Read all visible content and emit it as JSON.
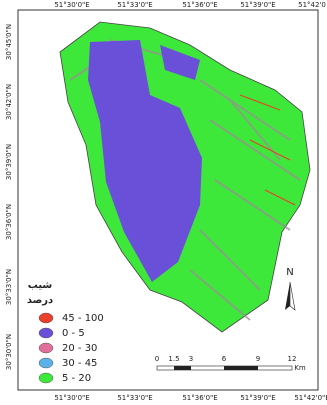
{
  "map": {
    "top_labels": [
      "51°30'0\"E",
      "51°33'0\"E",
      "51°36'0\"E",
      "51°39'0\"E",
      "51°42'0"
    ],
    "bottom_labels": [
      "51°30'0\"E",
      "51°33'0\"E",
      "51°36'0\"E",
      "51°39'0\"E",
      "51°42'0\"E"
    ],
    "left_labels": [
      "30°45'0\"N",
      "30°42'0\"N",
      "30°39'0\"N",
      "30°36'0\"N",
      "30°33'0\"N",
      "30°30'0\"N"
    ],
    "legend": {
      "title": "شیب",
      "subtitle": "درصد",
      "items": [
        {
          "label": "45 - 100",
          "color": "#e8402a"
        },
        {
          "label": "0 - 5",
          "color": "#6a4fd8"
        },
        {
          "label": "20 - 30",
          "color": "#e0709a"
        },
        {
          "label": "30 - 45",
          "color": "#5ab2e8"
        },
        {
          "label": "5 - 20",
          "color": "#3ee83a"
        }
      ]
    },
    "north": "N",
    "scale": {
      "ticks": [
        "0",
        "1.5",
        "3",
        "6",
        "9",
        "12"
      ],
      "unit": "Km"
    }
  }
}
